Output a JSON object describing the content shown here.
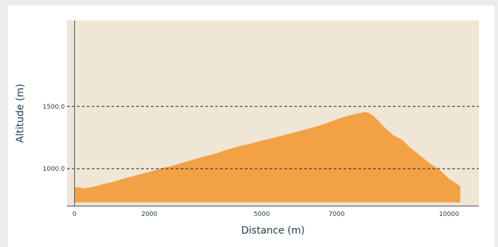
{
  "chart_data": {
    "type": "area",
    "xlabel": "Distance (m)",
    "ylabel": "Altitude (m)",
    "xlim": [
      -200,
      10800
    ],
    "ylim": [
      700,
      2190
    ],
    "x_ticks": [
      0,
      2000,
      5000,
      7000,
      10000
    ],
    "x_tick_labels": [
      "0",
      "2000",
      "5000",
      "7000",
      "10000"
    ],
    "y_ticks": [
      1000,
      1500
    ],
    "y_tick_labels": [
      "1000.0",
      "1500.0"
    ],
    "reference_lines": [
      1000,
      1500
    ],
    "grid": false,
    "baseline": 730,
    "colors": {
      "fill": "#f3a145",
      "plot_bg": "#efe6d5",
      "axis": "#5d6770",
      "ref_line": "#222222"
    },
    "series": [
      {
        "x": [
          0,
          150,
          250,
          500,
          750,
          1000,
          1250,
          1500,
          1750,
          2000,
          2250,
          2500,
          2750,
          3000,
          3250,
          3500,
          3750,
          4000,
          4250,
          4500,
          4750,
          5000,
          5250,
          5500,
          5750,
          6000,
          6250,
          6500,
          6750,
          7000,
          7250,
          7500,
          7750,
          7850,
          8000,
          8250,
          8500,
          8750,
          9000,
          9250,
          9500,
          9750,
          10000,
          10250,
          10300
        ],
        "values": [
          852,
          850,
          841,
          855,
          875,
          892,
          915,
          935,
          955,
          975,
          998,
          1015,
          1035,
          1058,
          1080,
          1100,
          1120,
          1145,
          1168,
          1188,
          1205,
          1225,
          1243,
          1262,
          1282,
          1302,
          1322,
          1342,
          1368,
          1395,
          1420,
          1440,
          1455,
          1450,
          1420,
          1340,
          1270,
          1230,
          1160,
          1100,
          1040,
          990,
          920,
          870,
          860
        ]
      }
    ]
  }
}
